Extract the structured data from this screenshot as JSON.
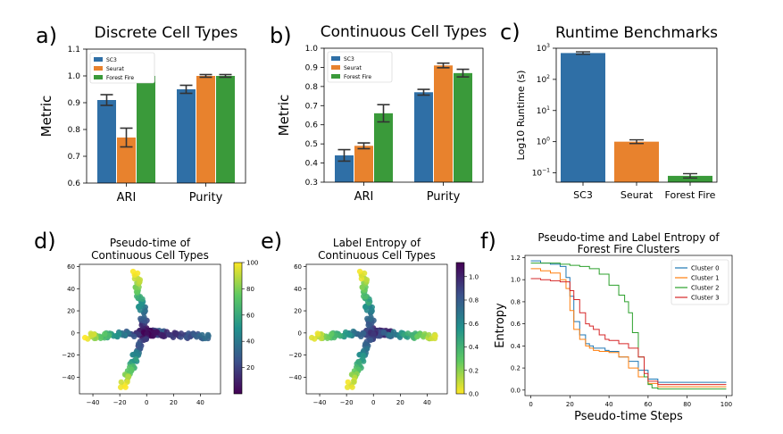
{
  "panel_letters": [
    "a)",
    "b)",
    "c)",
    "d)",
    "e)",
    "f)"
  ],
  "chart_data": [
    {
      "id": "a",
      "type": "bar",
      "title": "Discrete Cell Types",
      "xlabel": "",
      "ylabel": "Metric",
      "categories": [
        "ARI",
        "Purity"
      ],
      "series": [
        {
          "name": "SC3",
          "values": [
            0.91,
            0.95
          ],
          "errors": [
            0.02,
            0.015
          ],
          "color": "#2f6fa6"
        },
        {
          "name": "Seurat",
          "values": [
            0.77,
            1.0
          ],
          "errors": [
            0.035,
            0.005
          ],
          "color": "#e8822d"
        },
        {
          "name": "Forest Fire",
          "values": [
            1.0,
            1.0
          ],
          "errors": [
            0.004,
            0.005
          ],
          "color": "#3a9a3a"
        }
      ],
      "ylim": [
        0.6,
        1.1
      ],
      "yticks": [
        "0.6",
        "0.7",
        "0.8",
        "0.9",
        "1.0",
        "1.1"
      ],
      "legend": "top-left"
    },
    {
      "id": "b",
      "type": "bar",
      "title": "Continuous Cell Types",
      "xlabel": "",
      "ylabel": "Metric",
      "categories": [
        "ARI",
        "Purity"
      ],
      "series": [
        {
          "name": "SC3",
          "values": [
            0.44,
            0.77
          ],
          "errors": [
            0.03,
            0.015
          ],
          "color": "#2f6fa6"
        },
        {
          "name": "Seurat",
          "values": [
            0.49,
            0.91
          ],
          "errors": [
            0.015,
            0.012
          ],
          "color": "#e8822d"
        },
        {
          "name": "Forest Fire",
          "values": [
            0.66,
            0.87
          ],
          "errors": [
            0.045,
            0.02
          ],
          "color": "#3a9a3a"
        }
      ],
      "ylim": [
        0.3,
        1.0
      ],
      "yticks": [
        "0.3",
        "0.4",
        "0.5",
        "0.6",
        "0.7",
        "0.8",
        "0.9",
        "1.0"
      ],
      "legend": "top-left"
    },
    {
      "id": "c",
      "type": "bar",
      "title": "Runtime Benchmarks",
      "xlabel": "",
      "ylabel": "Log10 Runtime (s)",
      "categories": [
        "SC3",
        "Seurat",
        "Forest Fire"
      ],
      "values": [
        700,
        1.0,
        0.08
      ],
      "errors_log": [
        0.04,
        0.06,
        0.07
      ],
      "colors": [
        "#2f6fa6",
        "#e8822d",
        "#3a9a3a"
      ],
      "yscale": "log",
      "ylim_log10": [
        -1.3,
        3
      ],
      "yticks": [
        {
          "base": "10",
          "exp": "−1",
          "value": 0.1
        },
        {
          "base": "10",
          "exp": "0",
          "value": 1
        },
        {
          "base": "10",
          "exp": "1",
          "value": 10
        },
        {
          "base": "10",
          "exp": "2",
          "value": 100
        },
        {
          "base": "10",
          "exp": "3",
          "value": 1000
        }
      ]
    },
    {
      "id": "d",
      "type": "scatter",
      "title_lines": [
        "Pseudo-time of",
        "Continuous Cell Types"
      ],
      "xlim": [
        -50,
        55
      ],
      "ylim": [
        -55,
        62
      ],
      "xticks": [
        "−40",
        "−20",
        "0",
        "20",
        "40"
      ],
      "yticks": [
        "−40",
        "−20",
        "0",
        "20",
        "40",
        "60"
      ],
      "colormap": "viridis",
      "color_range": [
        0,
        100
      ],
      "colorbar_ticks": [
        "20",
        "40",
        "60",
        "80",
        "100"
      ],
      "branches": [
        {
          "from": [
            0,
            0
          ],
          "to": [
            12,
            0
          ],
          "end_value": 30
        },
        {
          "from": [
            0,
            0
          ],
          "to": [
            -45,
            -3
          ],
          "end_value": 98
        },
        {
          "from": [
            0,
            0
          ],
          "to": [
            46,
            -4
          ],
          "end_value": 35
        },
        {
          "from": [
            0,
            0
          ],
          "to": [
            -8,
            54
          ],
          "end_value": 100
        },
        {
          "from": [
            0,
            0
          ],
          "to": [
            -18,
            -48
          ],
          "end_value": 100
        }
      ]
    },
    {
      "id": "e",
      "type": "scatter",
      "title_lines": [
        "Label Entropy of",
        "Continuous Cell Types"
      ],
      "xlim": [
        -50,
        55
      ],
      "ylim": [
        -55,
        62
      ],
      "xticks": [
        "−40",
        "−20",
        "0",
        "20",
        "40"
      ],
      "yticks": [
        "−40",
        "−20",
        "0",
        "20",
        "40",
        "60"
      ],
      "colormap": "viridis_r",
      "color_range": [
        0,
        1.12
      ],
      "colorbar_ticks": [
        "0.0",
        "0.2",
        "0.4",
        "0.6",
        "0.8",
        "1.0"
      ],
      "branches": [
        {
          "from": [
            0,
            0
          ],
          "to": [
            12,
            0
          ],
          "end_value": 1.0
        },
        {
          "from": [
            0,
            0
          ],
          "to": [
            -45,
            -3
          ],
          "end_value": 0.02
        },
        {
          "from": [
            0,
            0
          ],
          "to": [
            46,
            -4
          ],
          "end_value": 0.05
        },
        {
          "from": [
            0,
            0
          ],
          "to": [
            -8,
            54
          ],
          "end_value": 0.02
        },
        {
          "from": [
            0,
            0
          ],
          "to": [
            -18,
            -48
          ],
          "end_value": 0.02
        }
      ]
    },
    {
      "id": "f",
      "type": "line",
      "title_lines": [
        "Pseudo-time and Label Entropy of",
        "Forest Fire Clusters"
      ],
      "xlabel": "Pseudo-time Steps",
      "ylabel": "Entropy",
      "xlim": [
        -3,
        103
      ],
      "ylim": [
        -0.05,
        1.22
      ],
      "xticks": [
        "0",
        "20",
        "40",
        "60",
        "80",
        "100"
      ],
      "yticks": [
        "0.0",
        "0.2",
        "0.4",
        "0.6",
        "0.8",
        "1.0",
        "1.2"
      ],
      "legend": "top-right",
      "series": [
        {
          "name": "Cluster 0",
          "color": "#1f77b4",
          "x": [
            0,
            5,
            10,
            15,
            18,
            20,
            22,
            25,
            28,
            30,
            32,
            35,
            38,
            40,
            45,
            50,
            55,
            60,
            65,
            70,
            80,
            90,
            100
          ],
          "y": [
            1.17,
            1.15,
            1.14,
            1.12,
            1.02,
            0.85,
            0.62,
            0.5,
            0.42,
            0.4,
            0.38,
            0.38,
            0.36,
            0.35,
            0.3,
            0.26,
            0.18,
            0.1,
            0.07,
            0.07,
            0.07,
            0.07,
            0.07
          ]
        },
        {
          "name": "Cluster 1",
          "color": "#ff7f0e",
          "x": [
            0,
            5,
            10,
            15,
            18,
            20,
            22,
            25,
            28,
            30,
            32,
            35,
            38,
            40,
            45,
            50,
            55,
            60,
            65,
            70,
            80,
            90,
            100
          ],
          "y": [
            1.1,
            1.08,
            1.06,
            1.0,
            0.92,
            0.72,
            0.55,
            0.46,
            0.4,
            0.38,
            0.36,
            0.35,
            0.35,
            0.34,
            0.3,
            0.2,
            0.12,
            0.06,
            0.03,
            0.03,
            0.03,
            0.03,
            0.03
          ]
        },
        {
          "name": "Cluster 2",
          "color": "#2ca02c",
          "x": [
            0,
            5,
            10,
            15,
            20,
            25,
            30,
            35,
            40,
            45,
            48,
            50,
            52,
            55,
            58,
            60,
            62,
            65,
            70,
            80,
            90,
            100
          ],
          "y": [
            1.15,
            1.15,
            1.15,
            1.14,
            1.13,
            1.12,
            1.1,
            1.05,
            0.95,
            0.86,
            0.8,
            0.7,
            0.52,
            0.3,
            0.12,
            0.05,
            0.02,
            0.01,
            0.01,
            0.01,
            0.01,
            0.01
          ]
        },
        {
          "name": "Cluster 3",
          "color": "#d62728",
          "x": [
            0,
            5,
            10,
            15,
            20,
            22,
            25,
            28,
            30,
            32,
            35,
            38,
            40,
            45,
            50,
            55,
            58,
            60,
            65,
            70,
            80,
            90,
            100
          ],
          "y": [
            1.01,
            1.0,
            0.99,
            0.98,
            0.9,
            0.82,
            0.7,
            0.6,
            0.58,
            0.55,
            0.5,
            0.46,
            0.45,
            0.42,
            0.38,
            0.3,
            0.15,
            0.08,
            0.05,
            0.05,
            0.05,
            0.05,
            0.05
          ]
        }
      ]
    }
  ]
}
